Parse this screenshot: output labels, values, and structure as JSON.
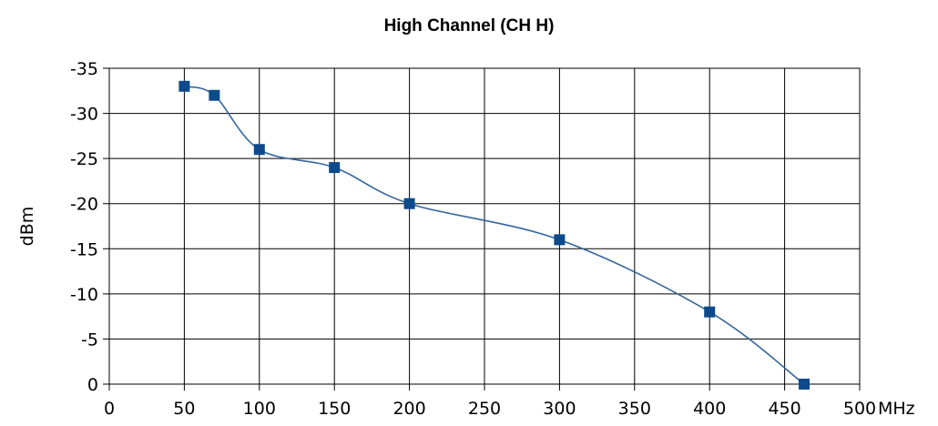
{
  "chart_data": {
    "type": "line",
    "title": "High Channel (CH H)",
    "xlabel": "MHz",
    "ylabel": "dBm",
    "xlim": [
      0,
      500
    ],
    "ylim": [
      0,
      -35
    ],
    "y_axis_inverted": true,
    "x_ticks": [
      "0",
      "50",
      "100",
      "150",
      "200",
      "250",
      "300",
      "350",
      "400",
      "450",
      "500"
    ],
    "y_ticks": [
      "-35",
      "-30",
      "-25",
      "-20",
      "-15",
      "-10",
      "-5",
      "0"
    ],
    "grid": true,
    "legend": "none",
    "line_style": "smoothed",
    "marker": "square",
    "series": [
      {
        "x": [
          50,
          70,
          100,
          150,
          200,
          300,
          400,
          463
        ],
        "y": [
          -33,
          -32,
          -26,
          -24,
          -20,
          -16,
          -8,
          0
        ],
        "color": "#34659c",
        "marker_color": "#0d4a8c"
      }
    ]
  }
}
